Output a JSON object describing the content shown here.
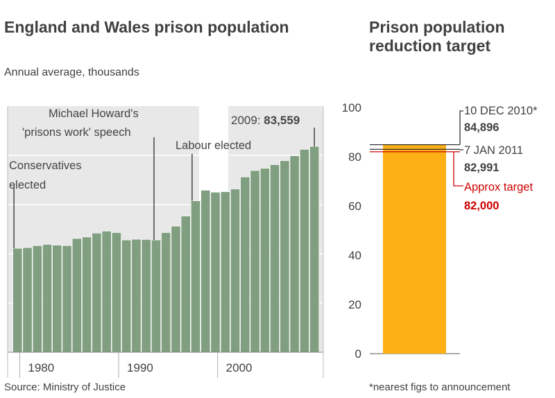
{
  "chart_data": [
    {
      "type": "bar",
      "title": "England and Wales prison population",
      "subtitle": "Annual average, thousands",
      "source": "Source: Ministry of Justice",
      "x_ticks": [
        "1980",
        "1990",
        "2000"
      ],
      "x": [
        1979,
        1980,
        1981,
        1982,
        1983,
        1984,
        1985,
        1986,
        1987,
        1988,
        1989,
        1990,
        1991,
        1992,
        1993,
        1994,
        1995,
        1996,
        1997,
        1998,
        1999,
        2000,
        2001,
        2002,
        2003,
        2004,
        2005,
        2006,
        2007,
        2008,
        2009
      ],
      "values": [
        42.2,
        42.5,
        43.3,
        43.8,
        43.5,
        43.3,
        46.2,
        46.8,
        48.4,
        49.2,
        48.6,
        45.6,
        45.9,
        45.8,
        45.6,
        48.6,
        51.2,
        55.3,
        61.5,
        65.8,
        65.0,
        65.2,
        66.3,
        71.2,
        73.8,
        74.7,
        76.2,
        77.8,
        79.8,
        82.4,
        83.6
      ],
      "ylim": [
        0,
        100
      ],
      "highlight": {
        "label": "2009: ",
        "value": "83,559"
      },
      "annotations": [
        {
          "lines": [
            "Conservatives",
            "elected"
          ],
          "x": 1979
        },
        {
          "lines": [
            "Michael Howard's",
            "'prisons work' speech"
          ],
          "x": 1993
        },
        {
          "lines": [
            "Labour elected"
          ],
          "x": 1997
        }
      ],
      "colors": {
        "bar": "#809e80",
        "shade": "#e8e8e8",
        "bar_edge": "#ffffff",
        "line": "#444444"
      }
    },
    {
      "type": "bar",
      "title": "Prison population reduction target",
      "footnote": "*nearest figs to announcement",
      "y_ticks": [
        "0",
        "20",
        "40",
        "60",
        "80",
        "100"
      ],
      "ylim": [
        0,
        100
      ],
      "bar_value": 84.896,
      "markers": [
        {
          "date": "10 DEC 2010*",
          "figure": "84,896",
          "value": 84.896,
          "color": "#333333"
        },
        {
          "date": "7 JAN 2011",
          "figure": "82,991",
          "value": 82.991,
          "color": "#333333"
        },
        {
          "date": "Approx target",
          "figure": "82,000",
          "value": 82.0,
          "color": "#cc0000"
        }
      ],
      "colors": {
        "bar": "#fcb015",
        "axis": "#aaaaaa"
      }
    }
  ]
}
